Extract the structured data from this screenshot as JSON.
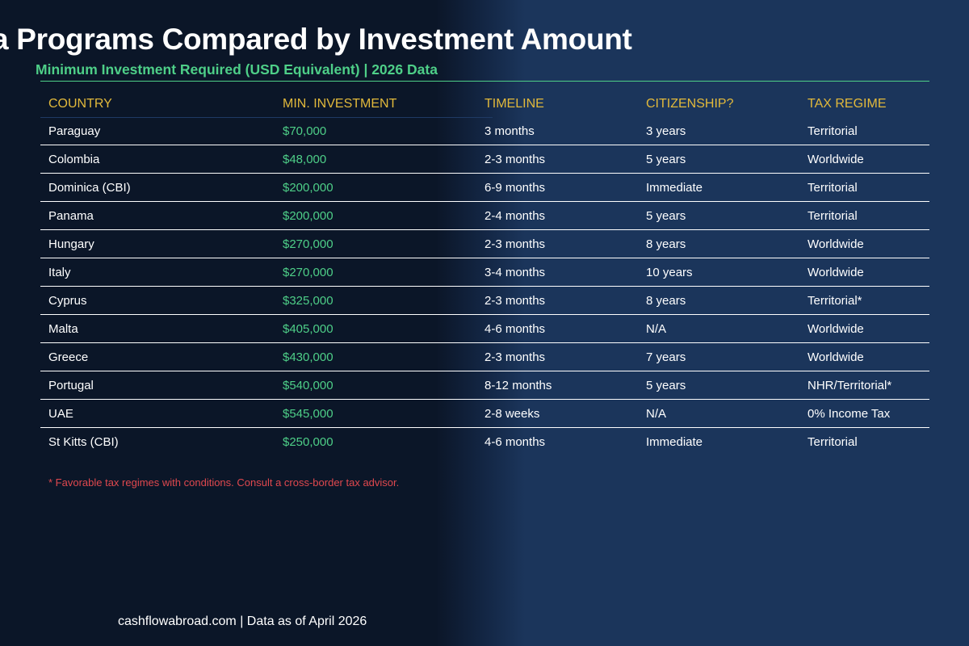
{
  "header": {
    "title": "a Programs Compared by Investment Amount",
    "subtitle": "Minimum Investment Required (USD Equivalent) | 2026 Data"
  },
  "colors": {
    "accent_green": "#4ecf88",
    "header_gold": "#e2b93b",
    "note_red": "#e0484e",
    "bg_dark": "#0b1628",
    "bg_blue": "#1b355b"
  },
  "table": {
    "columns": [
      "COUNTRY",
      "MIN. INVESTMENT",
      "TIMELINE",
      "CITIZENSHIP?",
      "TAX REGIME"
    ],
    "rows": [
      [
        "Paraguay",
        "$70,000",
        "3 months",
        "3 years",
        "Territorial"
      ],
      [
        "Colombia",
        "$48,000",
        "2-3 months",
        "5 years",
        "Worldwide"
      ],
      [
        "Dominica (CBI)",
        "$200,000",
        "6-9 months",
        "Immediate",
        "Territorial"
      ],
      [
        "Panama",
        "$200,000",
        "2-4 months",
        "5 years",
        "Territorial"
      ],
      [
        "Hungary",
        "$270,000",
        "2-3 months",
        "8 years",
        "Worldwide"
      ],
      [
        "Italy",
        "$270,000",
        "3-4 months",
        "10 years",
        "Worldwide"
      ],
      [
        "Cyprus",
        "$325,000",
        "2-3 months",
        "8 years",
        "Territorial*"
      ],
      [
        "Malta",
        "$405,000",
        "4-6 months",
        "N/A",
        "Worldwide"
      ],
      [
        "Greece",
        "$430,000",
        "2-3 months",
        "7 years",
        "Worldwide"
      ],
      [
        "Portugal",
        "$540,000",
        "8-12 months",
        "5 years",
        "NHR/Territorial*"
      ],
      [
        "UAE",
        "$545,000",
        "2-8 weeks",
        "N/A",
        "0% Income Tax"
      ],
      [
        "St Kitts (CBI)",
        "$250,000",
        "4-6 months",
        "Immediate",
        "Territorial"
      ]
    ]
  },
  "note": "* Favorable tax regimes with conditions. Consult a cross-border tax advisor.",
  "footer": "cashflowabroad.com | Data as of April 2026"
}
